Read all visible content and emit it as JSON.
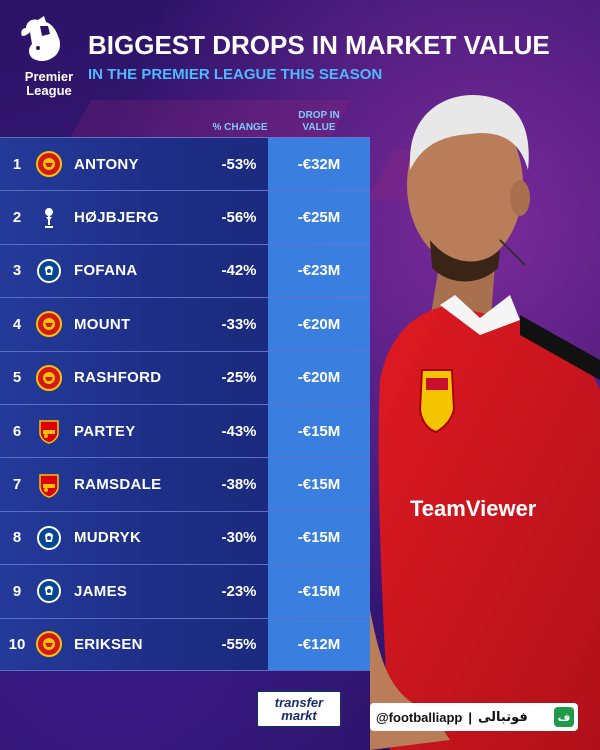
{
  "header": {
    "logo_text_1": "Premier",
    "logo_text_2": "League",
    "title": "BIGGEST DROPS IN MARKET VALUE",
    "subtitle": "IN THE PREMIER LEAGUE THIS SEASON"
  },
  "columns": {
    "pct_change": "% CHANGE",
    "drop_line1": "DROP IN",
    "drop_line2": "VALUE"
  },
  "rows": [
    {
      "rank": "1",
      "club": "manchester-united",
      "name": "ANTONY",
      "pct": "-53%",
      "drop": "-€32M"
    },
    {
      "rank": "2",
      "club": "tottenham",
      "name": "HØJBJERG",
      "pct": "-56%",
      "drop": "-€25M"
    },
    {
      "rank": "3",
      "club": "chelsea",
      "name": "FOFANA",
      "pct": "-42%",
      "drop": "-€23M"
    },
    {
      "rank": "4",
      "club": "manchester-united",
      "name": "MOUNT",
      "pct": "-33%",
      "drop": "-€20M"
    },
    {
      "rank": "5",
      "club": "manchester-united",
      "name": "RASHFORD",
      "pct": "-25%",
      "drop": "-€20M"
    },
    {
      "rank": "6",
      "club": "arsenal",
      "name": "PARTEY",
      "pct": "-43%",
      "drop": "-€15M"
    },
    {
      "rank": "7",
      "club": "arsenal",
      "name": "RAMSDALE",
      "pct": "-38%",
      "drop": "-€15M"
    },
    {
      "rank": "8",
      "club": "chelsea",
      "name": "MUDRYK",
      "pct": "-30%",
      "drop": "-€15M"
    },
    {
      "rank": "9",
      "club": "chelsea",
      "name": "JAMES",
      "pct": "-23%",
      "drop": "-€15M"
    },
    {
      "rank": "10",
      "club": "manchester-united",
      "name": "ERIKSEN",
      "pct": "-55%",
      "drop": "-€12M"
    }
  ],
  "jersey_sponsor": "TeamViewer",
  "footer": {
    "tm_line1": "transfer",
    "tm_line2": "markt",
    "handle": "@footballiapp",
    "handle_fa": "فوتبالی",
    "app_icon": "ف"
  },
  "colors": {
    "background": "#2b1468",
    "accent_blue": "#4fb8ff",
    "drop_column": "#3a7fe0",
    "row": "#1d2e86",
    "jersey_red": "#d4161d"
  }
}
